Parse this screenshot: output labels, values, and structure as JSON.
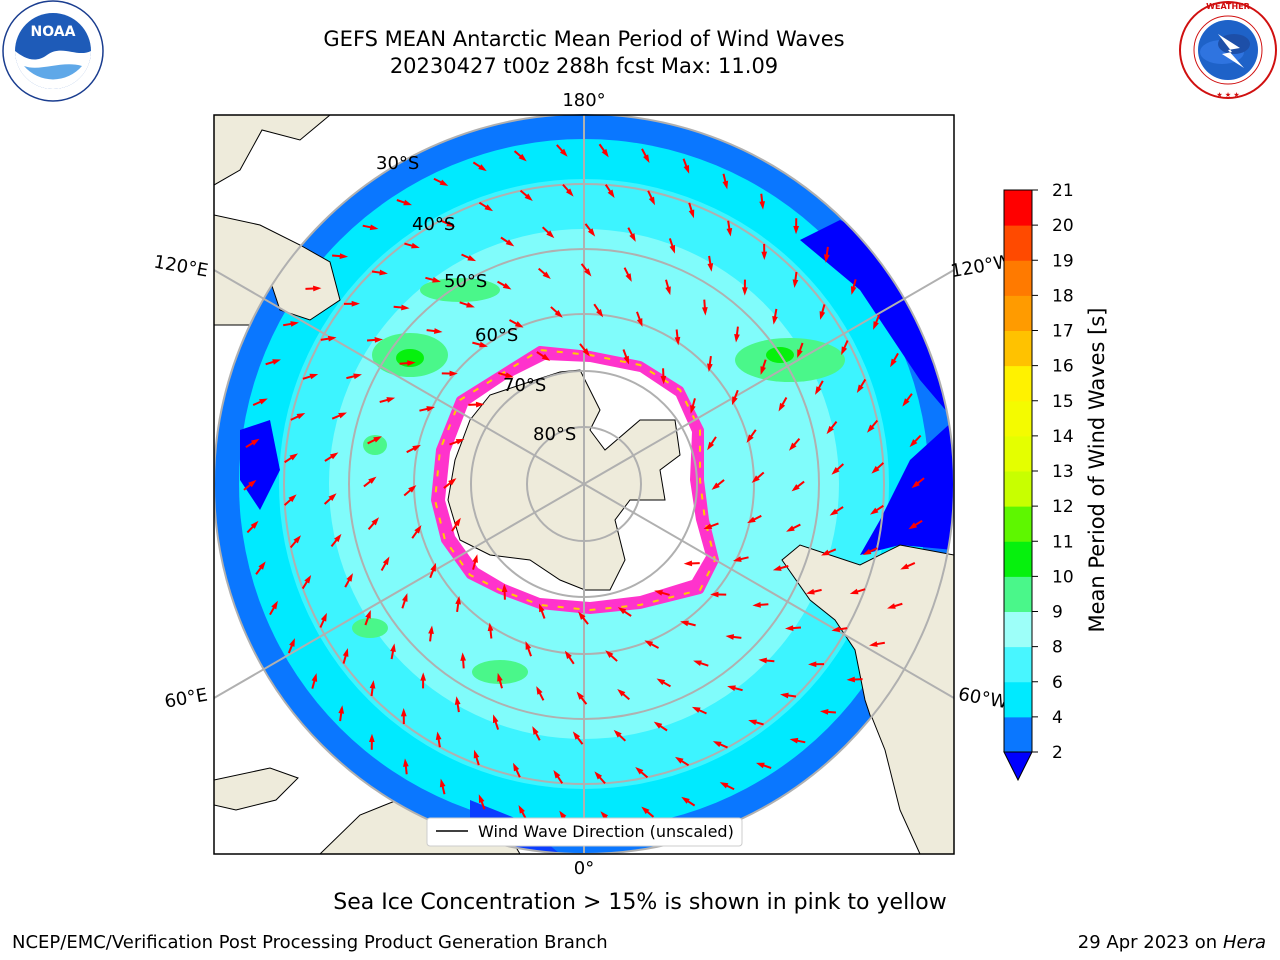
{
  "header": {
    "title_line1": "GEFS MEAN Antarctic Mean Period of Wind Waves",
    "title_line2": "20230427 t00z 288h fcst   Max: 11.09"
  },
  "logos": {
    "left": {
      "name": "noaa-logo",
      "text": "NOAA",
      "ring_text": "NATIONAL OCEANIC AND ATMOSPHERIC ADMINISTRATION · U.S. DEPARTMENT OF COMMERCE"
    },
    "right": {
      "name": "nws-logo",
      "ring_text": "NATIONAL WEATHER SERVICE"
    }
  },
  "map": {
    "projection": "south-polar-stereographic",
    "lon_labels": {
      "top": "180°",
      "bottom": "0°",
      "left_upper": "120°E",
      "left_lower": "60°E",
      "right_upper": "120°W",
      "right_lower": "60°W"
    },
    "lat_labels": [
      "30°S",
      "40°S",
      "50°S",
      "60°S",
      "70°S",
      "80°S"
    ],
    "legend_label": "Wind Wave Direction (unscaled)",
    "colors": {
      "land": "#eeebdb",
      "ice_edge_pink": "#ff33cc",
      "ice_edge_yellow": "#ffcc00",
      "arrow": "#ff0000",
      "grid": "#b0b0b0"
    }
  },
  "colorbar": {
    "label": "Mean Period of Wind Waves [s]",
    "ticks": [
      "2",
      "4",
      "6",
      "8",
      "9",
      "10",
      "11",
      "12",
      "13",
      "14",
      "15",
      "16",
      "17",
      "18",
      "19",
      "20",
      "21"
    ],
    "bins": [
      {
        "from": 2,
        "to": 4,
        "color": "#0a77ff"
      },
      {
        "from": 4,
        "to": 6,
        "color": "#00eaff"
      },
      {
        "from": 6,
        "to": 8,
        "color": "#48f6ff"
      },
      {
        "from": 8,
        "to": 9,
        "color": "#9dfff9"
      },
      {
        "from": 9,
        "to": 10,
        "color": "#4af78a"
      },
      {
        "from": 10,
        "to": 11,
        "color": "#06f10d"
      },
      {
        "from": 11,
        "to": 12,
        "color": "#5ef700"
      },
      {
        "from": 12,
        "to": 13,
        "color": "#c8ff00"
      },
      {
        "from": 13,
        "to": 14,
        "color": "#e4ff00"
      },
      {
        "from": 14,
        "to": 15,
        "color": "#f4fb00"
      },
      {
        "from": 15,
        "to": 16,
        "color": "#fff200"
      },
      {
        "from": 16,
        "to": 17,
        "color": "#ffc200"
      },
      {
        "from": 17,
        "to": 18,
        "color": "#ff9b00"
      },
      {
        "from": 18,
        "to": 19,
        "color": "#ff7a00"
      },
      {
        "from": 19,
        "to": 20,
        "color": "#ff4a00"
      },
      {
        "from": 20,
        "to": 21,
        "color": "#ff0000"
      }
    ],
    "under_color": "#0000ff"
  },
  "caption": "Sea Ice Concentration > 15% is shown in pink to yellow",
  "footer": {
    "left": "NCEP/EMC/Verification Post Processing Product Generation Branch",
    "right_prefix": "29 Apr 2023 on ",
    "right_host": "Hera"
  }
}
